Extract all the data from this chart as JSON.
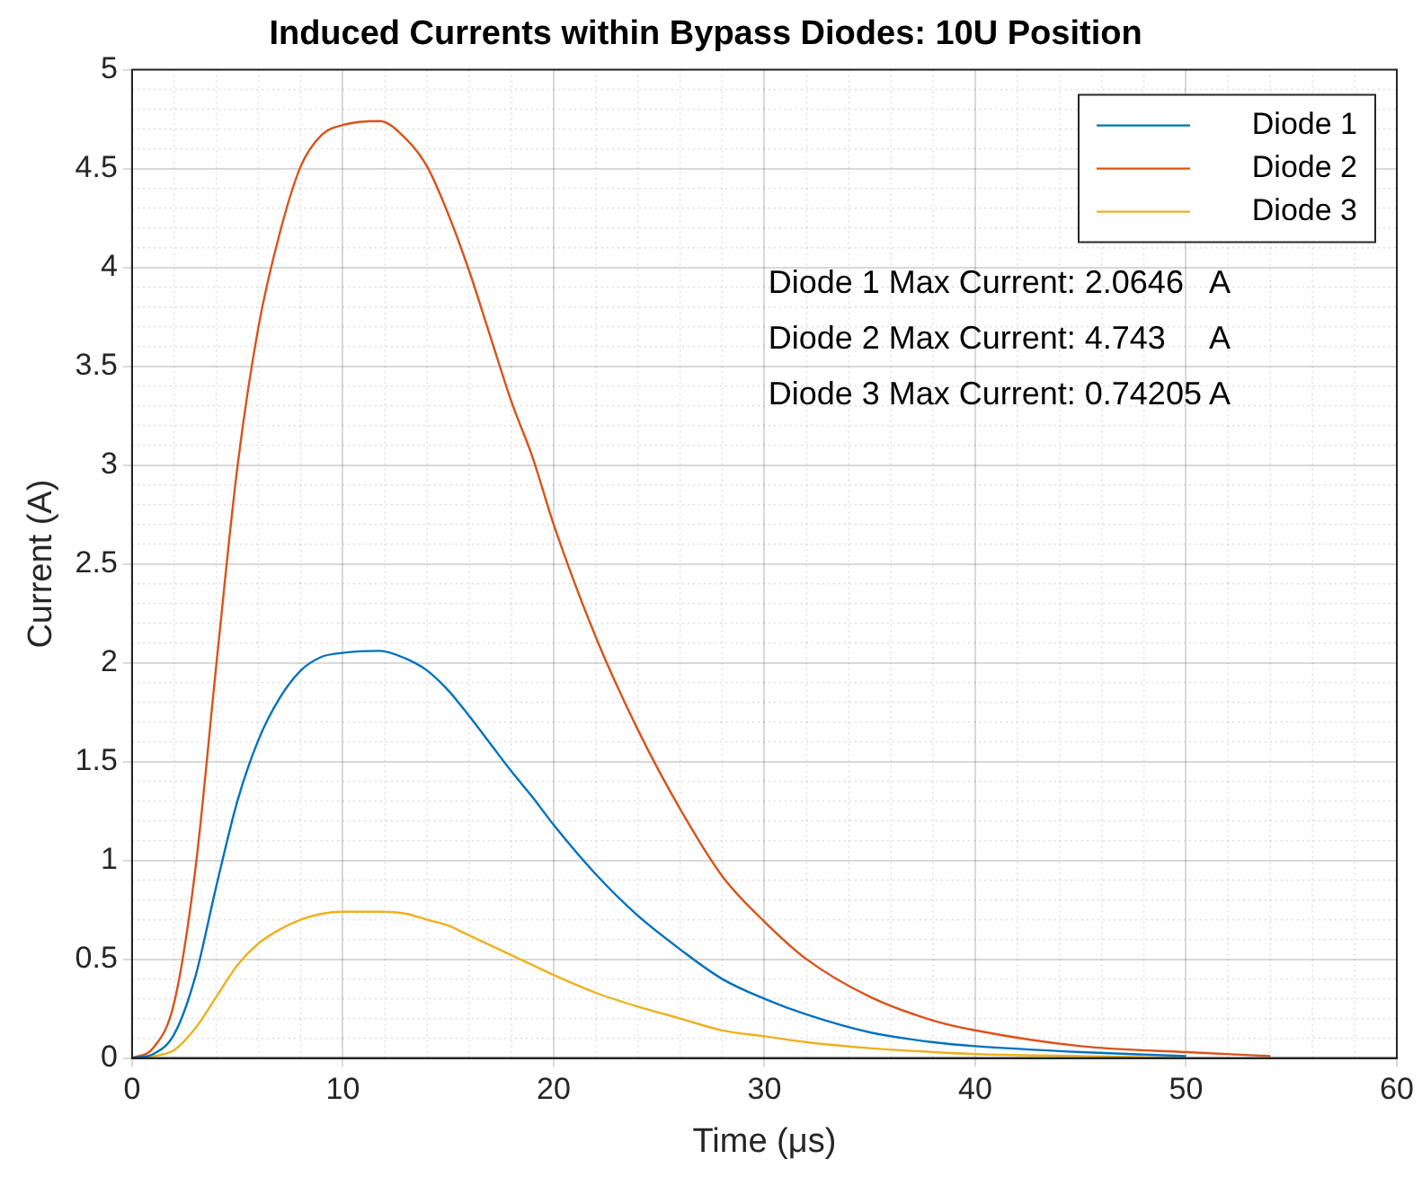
{
  "chart_data": {
    "type": "line",
    "title": "Induced Currents within Bypass Diodes: 10U Position",
    "xlabel": "Time (μs)",
    "ylabel": "Current (A)",
    "x": [
      0,
      1,
      2,
      3,
      4,
      5,
      6,
      7,
      8,
      9,
      10,
      11.75,
      13,
      14,
      15,
      16,
      17,
      18,
      19,
      20,
      22,
      24,
      26,
      28,
      30,
      32,
      35,
      38,
      40,
      45,
      50
    ],
    "series": [
      {
        "name": "Diode 1",
        "color": "#0072bd",
        "values": [
          0,
          0.02,
          0.12,
          0.41,
          0.87,
          1.3,
          1.61,
          1.82,
          1.96,
          2.03,
          2.05,
          2.06,
          2.02,
          1.96,
          1.86,
          1.73,
          1.59,
          1.45,
          1.32,
          1.18,
          0.93,
          0.72,
          0.55,
          0.4,
          0.3,
          0.22,
          0.13,
          0.08,
          0.06,
          0.03,
          0.01
        ]
      },
      {
        "name": "Diode 2",
        "color": "#d95319",
        "x": [
          0,
          1,
          2,
          3,
          4,
          5,
          6,
          7,
          8,
          9,
          10,
          11.75,
          13,
          14,
          15,
          16,
          17,
          18,
          19,
          20,
          22,
          24,
          26,
          28,
          30,
          32,
          35,
          38,
          40,
          45,
          50,
          54
        ],
        "values": [
          0,
          0.05,
          0.28,
          0.95,
          1.99,
          2.99,
          3.7,
          4.17,
          4.51,
          4.67,
          4.72,
          4.74,
          4.65,
          4.51,
          4.27,
          3.98,
          3.65,
          3.32,
          3.04,
          2.7,
          2.13,
          1.66,
          1.26,
          0.92,
          0.69,
          0.5,
          0.31,
          0.19,
          0.14,
          0.06,
          0.03,
          0.01
        ]
      },
      {
        "name": "Diode 3",
        "color": "#edb120",
        "values": [
          0,
          0.01,
          0.04,
          0.15,
          0.31,
          0.47,
          0.58,
          0.65,
          0.7,
          0.73,
          0.74,
          0.74,
          0.73,
          0.7,
          0.67,
          0.62,
          0.57,
          0.52,
          0.47,
          0.42,
          0.33,
          0.26,
          0.2,
          0.14,
          0.11,
          0.08,
          0.05,
          0.03,
          0.02,
          0.01,
          0
        ]
      }
    ],
    "xlim": [
      0,
      60
    ],
    "xticks": [
      0,
      10,
      20,
      30,
      40,
      50,
      60
    ],
    "ylim": [
      0,
      5
    ],
    "yticks": [
      0,
      0.5,
      1,
      1.5,
      2,
      2.5,
      3,
      3.5,
      4,
      4.5,
      5
    ],
    "grid": true,
    "legend": "top right",
    "marker": "none",
    "line_style": "solid",
    "annotations": [
      "Diode 1 Max Current: 2.0646   A",
      "Diode 2 Max Current: 4.743     A",
      "Diode 3 Max Current: 0.74205 A"
    ]
  }
}
